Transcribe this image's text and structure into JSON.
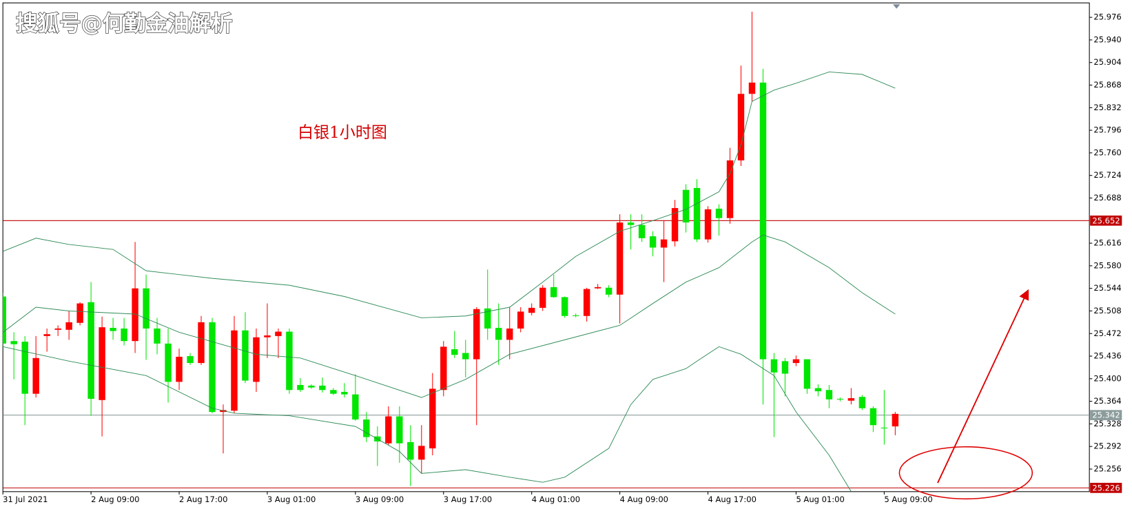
{
  "chart_data": {
    "type": "candlestick",
    "watermark": "搜狐号@何勤金油解析",
    "annotation": "白银1小时图",
    "up_color": "#ff0000",
    "down_color": "#00e600",
    "categories": [
      "31 Jul 2021",
      null,
      null,
      null,
      null,
      null,
      null,
      null,
      "2 Aug 09:00",
      null,
      null,
      null,
      null,
      null,
      null,
      null,
      "2 Aug 17:00",
      null,
      null,
      null,
      null,
      null,
      null,
      null,
      "3 Aug 01:00",
      null,
      null,
      null,
      null,
      null,
      null,
      null,
      "3 Aug 09:00",
      null,
      null,
      null,
      null,
      null,
      null,
      null,
      "3 Aug 17:00",
      null,
      null,
      null,
      null,
      null,
      null,
      null,
      "4 Aug 01:00",
      null,
      null,
      null,
      null,
      null,
      null,
      null,
      "4 Aug 09:00",
      null,
      null,
      null,
      null,
      null,
      null,
      null,
      "4 Aug 17:00",
      null,
      null,
      null,
      null,
      null,
      null,
      null,
      "5 Aug 01:00",
      null,
      null,
      null,
      null,
      null,
      null,
      null,
      "5 Aug 09:00",
      null
    ],
    "open": [
      25.531,
      25.46,
      25.459,
      25.376,
      25.468,
      25.478,
      25.478,
      25.489,
      25.522,
      25.366,
      25.481,
      25.48,
      25.46,
      25.544,
      25.48,
      25.456,
      25.395,
      25.436,
      25.425,
      25.49,
      25.347,
      25.349,
      25.477,
      25.395,
      25.466,
      25.468,
      25.475,
      25.39,
      25.389,
      25.389,
      25.382,
      25.379,
      25.375,
      25.335,
      25.308,
      25.297,
      25.34,
      25.299,
      25.271,
      25.289,
      25.382,
      25.447,
      25.441,
      25.431,
      25.512,
      25.481,
      25.462,
      25.48,
      25.505,
      25.513,
      25.546,
      25.53,
      25.501,
      25.5,
      25.544,
      25.545,
      25.534,
      25.649,
      25.645,
      25.627,
      25.609,
      25.619,
      25.701,
      25.704,
      25.622,
      25.671,
      25.656,
      25.748,
      25.854,
      25.872,
      25.431,
      25.428,
      25.425,
      25.431,
      25.385,
      25.382,
      25.368,
      25.365,
      25.371,
      25.353,
      25.322,
      25.324
    ],
    "high": [
      25.537,
      25.474,
      25.468,
      25.468,
      25.48,
      25.485,
      25.508,
      25.522,
      25.554,
      25.499,
      25.497,
      25.497,
      25.618,
      25.566,
      25.497,
      25.48,
      25.448,
      25.441,
      25.5,
      25.497,
      25.359,
      25.5,
      25.506,
      25.48,
      25.52,
      25.48,
      25.48,
      25.401,
      25.391,
      25.402,
      25.385,
      25.393,
      25.407,
      25.347,
      25.324,
      25.356,
      25.356,
      25.326,
      25.326,
      25.409,
      25.46,
      25.476,
      25.462,
      25.514,
      25.574,
      25.52,
      25.514,
      25.514,
      25.52,
      25.549,
      25.566,
      25.531,
      25.504,
      25.545,
      25.551,
      25.549,
      25.662,
      25.662,
      25.662,
      25.635,
      25.652,
      25.685,
      25.71,
      25.718,
      25.675,
      25.678,
      25.768,
      25.899,
      25.985,
      25.894,
      25.441,
      25.433,
      25.437,
      25.431,
      25.391,
      25.39,
      25.37,
      25.385,
      25.374,
      25.356,
      25.382,
      25.347
    ],
    "low": [
      25.451,
      25.399,
      25.326,
      25.37,
      25.443,
      25.468,
      25.462,
      25.485,
      25.341,
      25.308,
      25.462,
      25.453,
      25.441,
      25.43,
      25.439,
      25.362,
      25.382,
      25.422,
      25.422,
      25.345,
      25.281,
      25.345,
      25.393,
      25.379,
      25.433,
      25.433,
      25.376,
      25.379,
      25.384,
      25.378,
      25.374,
      25.37,
      25.333,
      25.299,
      25.261,
      25.294,
      25.266,
      25.229,
      25.249,
      25.278,
      25.372,
      25.433,
      25.402,
      25.326,
      25.462,
      25.422,
      25.431,
      25.474,
      25.501,
      25.508,
      25.529,
      25.497,
      25.498,
      25.491,
      25.543,
      25.53,
      25.488,
      25.606,
      25.618,
      25.595,
      25.554,
      25.611,
      25.633,
      25.618,
      25.617,
      25.628,
      25.647,
      25.739,
      25.842,
      25.359,
      25.307,
      25.372,
      25.42,
      25.376,
      25.372,
      25.353,
      25.364,
      25.359,
      25.35,
      25.315,
      25.295,
      25.31
    ],
    "close": [
      25.456,
      25.455,
      25.376,
      25.433,
      25.471,
      25.48,
      25.49,
      25.52,
      25.368,
      25.482,
      25.476,
      25.46,
      25.544,
      25.48,
      25.456,
      25.395,
      25.435,
      25.425,
      25.49,
      25.347,
      25.35,
      25.477,
      25.397,
      25.466,
      25.469,
      25.475,
      25.382,
      25.382,
      25.386,
      25.382,
      25.376,
      25.375,
      25.335,
      25.307,
      25.3,
      25.34,
      25.297,
      25.271,
      25.293,
      25.384,
      25.451,
      25.438,
      25.431,
      25.511,
      25.48,
      25.462,
      25.48,
      25.507,
      25.513,
      25.545,
      25.53,
      25.5,
      25.5,
      25.543,
      25.546,
      25.534,
      25.649,
      25.645,
      25.624,
      25.609,
      25.622,
      25.672,
      25.649,
      25.622,
      25.67,
      25.656,
      25.748,
      25.854,
      25.872,
      25.431,
      25.41,
      25.408,
      25.431,
      25.384,
      25.38,
      25.367,
      25.367,
      25.369,
      25.353,
      25.326,
      25.321,
      25.344
    ],
    "bands": [
      {
        "color": "#2e8b57",
        "x": [
          0,
          3,
          6,
          10,
          13,
          19,
          26,
          31,
          38,
          42,
          46,
          49,
          52,
          56,
          59,
          62,
          65,
          66,
          67,
          68,
          70,
          72,
          75,
          78,
          81
        ],
        "values": [
          25.603,
          25.624,
          25.614,
          25.606,
          25.572,
          25.56,
          25.549,
          25.531,
          25.497,
          25.5,
          25.514,
          25.554,
          25.595,
          25.635,
          25.652,
          25.67,
          25.698,
          25.727,
          25.773,
          25.842,
          25.86,
          25.871,
          25.889,
          25.885,
          25.863
        ]
      },
      {
        "color": "#2e8b57",
        "x": [
          0,
          3,
          6,
          12,
          16,
          23,
          27,
          32,
          38,
          42,
          46,
          51,
          56,
          59,
          62,
          65,
          68,
          69,
          71,
          75,
          78,
          81
        ],
        "values": [
          25.474,
          25.514,
          25.508,
          25.503,
          25.474,
          25.439,
          25.433,
          25.405,
          25.37,
          25.399,
          25.439,
          25.462,
          25.485,
          25.52,
          25.554,
          25.577,
          25.618,
          25.629,
          25.618,
          25.577,
          25.537,
          25.503
        ]
      },
      {
        "color": "#2e8b57",
        "x": [
          0,
          6,
          13,
          19,
          21,
          26,
          32,
          36,
          38,
          42,
          46,
          49,
          51,
          55,
          57,
          59,
          62,
          63,
          65,
          67,
          70,
          72,
          75,
          77
        ],
        "values": [
          25.451,
          25.428,
          25.405,
          25.353,
          25.345,
          25.341,
          25.324,
          25.284,
          25.249,
          25.255,
          25.243,
          25.235,
          25.243,
          25.289,
          25.359,
          25.399,
          25.416,
          25.428,
          25.451,
          25.439,
          25.405,
          25.347,
          25.278,
          25.22
        ]
      }
    ],
    "levels": [
      {
        "value": 25.652,
        "color": "#c00000"
      },
      {
        "value": 25.342,
        "color": "#8c9c9c"
      },
      {
        "value": 25.226,
        "color": "#c00000"
      }
    ],
    "ylim": [
      25.22,
      25.999
    ],
    "yticks": [
      25.976,
      {
        "value": 25.94,
        "label": "25.940"
      },
      25.904,
      25.868,
      25.832,
      25.796,
      {
        "value": 25.76,
        "label": "25.760"
      },
      25.724,
      25.688,
      25.616,
      {
        "value": 25.58,
        "label": "25.580"
      },
      25.544,
      25.508,
      25.472,
      25.436,
      {
        "value": 25.4,
        "label": "25.400"
      },
      25.364,
      25.328,
      25.292,
      25.256
    ]
  }
}
